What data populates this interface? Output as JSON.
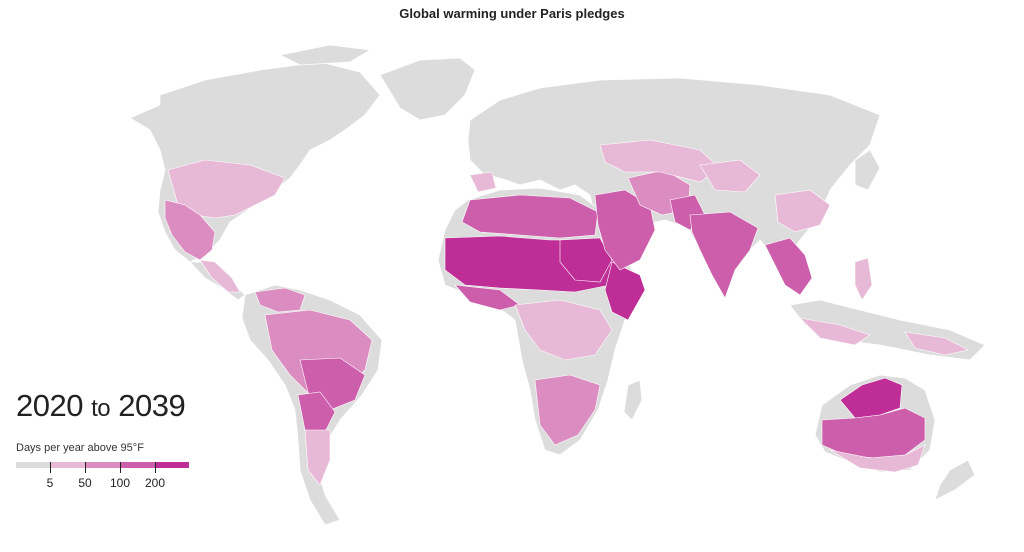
{
  "title": "Global warming under Paris pledges",
  "period": {
    "start": "2020",
    "connector": "to",
    "end": "2039"
  },
  "legend": {
    "title": "Days per year above 95°F",
    "ticks": [
      "5",
      "50",
      "100",
      "200"
    ],
    "colors": [
      "#dcdcdc",
      "#e8b9d6",
      "#db8cc0",
      "#cd5eab",
      "#bf2d96"
    ]
  },
  "colors": {
    "land_base": "#dcdcdc",
    "border": "#ffffff",
    "ocean": "#ffffff",
    "text": "#222222"
  }
}
